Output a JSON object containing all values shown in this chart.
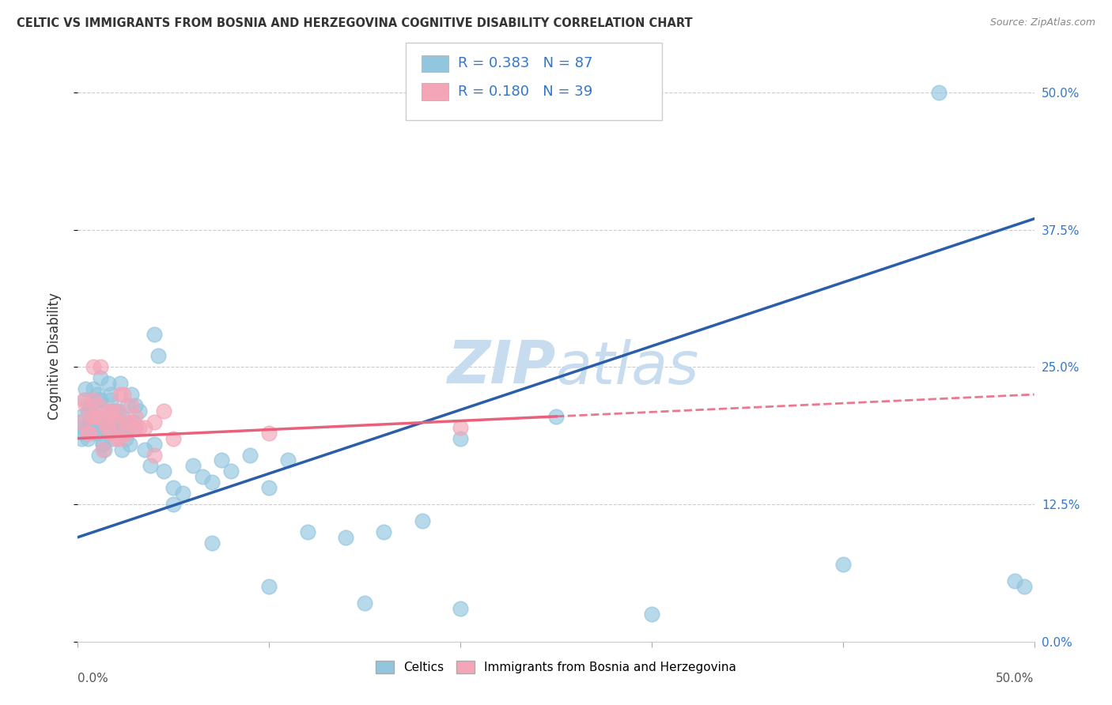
{
  "title": "CELTIC VS IMMIGRANTS FROM BOSNIA AND HERZEGOVINA COGNITIVE DISABILITY CORRELATION CHART",
  "source": "Source: ZipAtlas.com",
  "ylabel": "Cognitive Disability",
  "x_lim": [
    0.0,
    50.0
  ],
  "y_lim": [
    0.0,
    52.0
  ],
  "y_ticks": [
    0.0,
    12.5,
    25.0,
    37.5,
    50.0
  ],
  "y_tick_labels": [
    "0.0%",
    "12.5%",
    "25.0%",
    "37.5%",
    "50.0%"
  ],
  "legend1_R": "0.383",
  "legend1_N": "87",
  "legend2_R": "0.180",
  "legend2_N": "39",
  "color_blue": "#92C5DE",
  "color_pink": "#F4A6B8",
  "color_blue_line": "#2B5EAA",
  "color_pink_line": "#E8607A",
  "watermark_color": "#C8DCF0",
  "series1_label": "Celtics",
  "series2_label": "Immigrants from Bosnia and Herzegovina",
  "blue_line_x0": 0.0,
  "blue_line_y0": 9.5,
  "blue_line_x1": 50.0,
  "blue_line_y1": 38.5,
  "pink_line_x0": 0.0,
  "pink_line_y0": 18.5,
  "pink_line_x1": 50.0,
  "pink_line_y1": 22.5,
  "pink_solid_end": 25.0,
  "blue_solid_end": 50.0,
  "blue_x": [
    0.2,
    0.3,
    0.4,
    0.5,
    0.6,
    0.7,
    0.8,
    0.9,
    1.0,
    1.1,
    1.2,
    1.3,
    1.4,
    1.5,
    1.6,
    1.7,
    1.8,
    1.9,
    2.0,
    2.1,
    2.2,
    2.3,
    2.4,
    2.5,
    2.6,
    2.7,
    2.8,
    2.9,
    3.0,
    3.2,
    3.5,
    3.8,
    4.0,
    4.2,
    4.5,
    5.0,
    5.5,
    6.0,
    6.5,
    7.0,
    7.5,
    8.0,
    9.0,
    10.0,
    11.0,
    12.0,
    14.0,
    16.0,
    18.0,
    20.0,
    25.0,
    45.0,
    0.1,
    0.2,
    0.3,
    0.5,
    0.7,
    0.9,
    1.1,
    1.3,
    1.5,
    1.7,
    1.9,
    2.1,
    2.3,
    2.5,
    0.4,
    0.6,
    0.8,
    1.0,
    1.2,
    1.4,
    1.6,
    1.8,
    2.0,
    2.5,
    3.0,
    4.0,
    5.0,
    7.0,
    10.0,
    15.0,
    20.0,
    30.0,
    40.0,
    49.0,
    49.5
  ],
  "blue_y": [
    20.5,
    19.0,
    22.0,
    18.5,
    20.0,
    21.5,
    23.0,
    19.5,
    22.5,
    17.0,
    24.0,
    18.0,
    21.0,
    20.0,
    19.0,
    22.0,
    18.5,
    20.5,
    19.5,
    21.0,
    23.5,
    17.5,
    20.0,
    19.0,
    21.5,
    18.0,
    22.5,
    20.0,
    19.5,
    21.0,
    17.5,
    16.0,
    28.0,
    26.0,
    15.5,
    14.0,
    13.5,
    16.0,
    15.0,
    14.5,
    16.5,
    15.5,
    17.0,
    14.0,
    16.5,
    10.0,
    9.5,
    10.0,
    11.0,
    18.5,
    20.5,
    50.0,
    20.0,
    18.5,
    19.5,
    21.0,
    20.5,
    19.0,
    22.0,
    18.0,
    20.0,
    22.5,
    21.0,
    19.5,
    20.5,
    18.5,
    23.0,
    21.5,
    20.0,
    19.0,
    22.0,
    17.5,
    23.5,
    21.0,
    20.0,
    19.5,
    21.5,
    18.0,
    12.5,
    9.0,
    5.0,
    3.5,
    3.0,
    2.5,
    7.0,
    5.5,
    5.0
  ],
  "pink_x": [
    0.2,
    0.4,
    0.6,
    0.8,
    1.0,
    1.2,
    1.5,
    1.8,
    2.0,
    2.2,
    2.5,
    2.8,
    3.0,
    3.5,
    4.0,
    4.5,
    0.3,
    0.7,
    1.1,
    1.4,
    1.7,
    2.1,
    2.4,
    2.7,
    3.2,
    5.0,
    10.0,
    20.0,
    0.5,
    0.9,
    1.3,
    1.6,
    2.0,
    2.5,
    3.0,
    4.0,
    1.8,
    2.2,
    0.8
  ],
  "pink_y": [
    20.0,
    21.5,
    19.0,
    22.0,
    20.5,
    25.0,
    19.5,
    21.0,
    20.0,
    22.5,
    19.0,
    21.5,
    20.5,
    19.5,
    20.0,
    21.0,
    22.0,
    20.5,
    21.5,
    20.0,
    19.0,
    21.0,
    22.5,
    20.0,
    19.5,
    18.5,
    19.0,
    19.5,
    19.0,
    20.5,
    17.5,
    21.0,
    18.5,
    20.0,
    19.5,
    17.0,
    20.5,
    18.5,
    25.0
  ]
}
